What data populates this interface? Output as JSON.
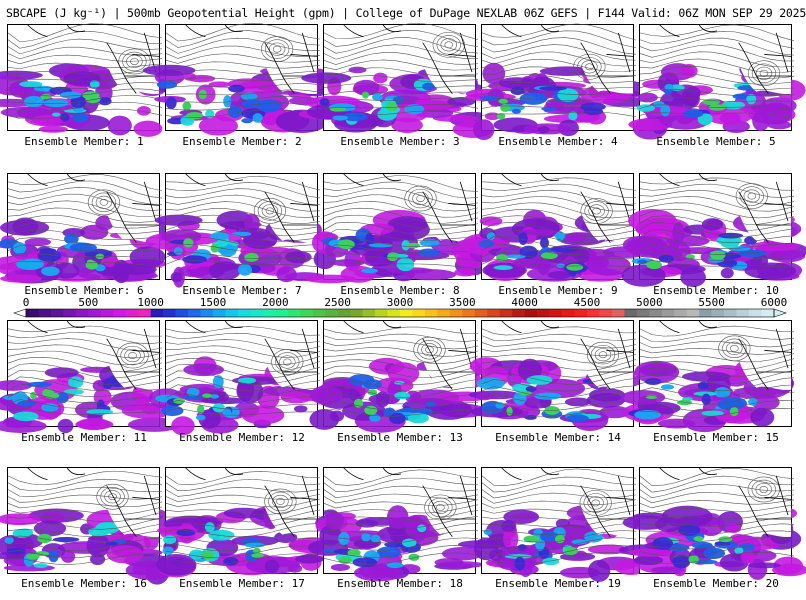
{
  "header": {
    "title": "SBCAPE (J kg⁻¹) | 500mb Geopotential Height (gpm) | College of DuPage NEXLAB 06Z GEFS | F144 Valid: 06Z MON SEP 29 2025"
  },
  "panels": [
    {
      "label": "Ensemble Member: 1"
    },
    {
      "label": "Ensemble Member: 2"
    },
    {
      "label": "Ensemble Member: 3"
    },
    {
      "label": "Ensemble Member: 4"
    },
    {
      "label": "Ensemble Member: 5"
    },
    {
      "label": "Ensemble Member: 6"
    },
    {
      "label": "Ensemble Member: 7"
    },
    {
      "label": "Ensemble Member: 8"
    },
    {
      "label": "Ensemble Member: 9"
    },
    {
      "label": "Ensemble Member: 10"
    },
    {
      "label": "Ensemble Member: 11"
    },
    {
      "label": "Ensemble Member: 12"
    },
    {
      "label": "Ensemble Member: 13"
    },
    {
      "label": "Ensemble Member: 14"
    },
    {
      "label": "Ensemble Member: 15"
    },
    {
      "label": "Ensemble Member: 16"
    },
    {
      "label": "Ensemble Member: 17"
    },
    {
      "label": "Ensemble Member: 18"
    },
    {
      "label": "Ensemble Member: 19"
    },
    {
      "label": "Ensemble Member: 20"
    }
  ],
  "colorbar": {
    "ticks": [
      "0",
      "500",
      "1000",
      "1500",
      "2000",
      "2500",
      "3000",
      "3500",
      "4000",
      "4500",
      "5000",
      "5500",
      "6000"
    ],
    "colors": [
      "#3a0a6e",
      "#4b0f86",
      "#5e139c",
      "#7515b0",
      "#8c17c2",
      "#a418d0",
      "#bb18dc",
      "#d21ae4",
      "#e21ed4",
      "#ef25bf",
      "#2a1ab8",
      "#2032d0",
      "#1c4ee0",
      "#1a6aea",
      "#188af0",
      "#17a8f2",
      "#16c4ee",
      "#16dbe0",
      "#18e8c8",
      "#1cefa8",
      "#22f090",
      "#2ee670",
      "#3cd858",
      "#4ac648",
      "#58b43c",
      "#66a232",
      "#78a82c",
      "#96be26",
      "#b8d420",
      "#d8e41c",
      "#f2ec1a",
      "#f8d81a",
      "#f8c01a",
      "#f6a81a",
      "#f2901a",
      "#ec781a",
      "#e4601a",
      "#d84818",
      "#c83016",
      "#b41c14",
      "#a81010",
      "#be1212",
      "#d41414",
      "#e81818",
      "#f42020",
      "#f83232",
      "#f04848",
      "#e06060",
      "#6a6a6a",
      "#7a7a7a",
      "#8a8a8a",
      "#9a9a9a",
      "#aaaaaa",
      "#b8b8b8",
      "#8aa0a8",
      "#9ab0b8",
      "#a8c0c8",
      "#b8d0d8",
      "#c8e0e8",
      "#d4ecf2"
    ]
  }
}
